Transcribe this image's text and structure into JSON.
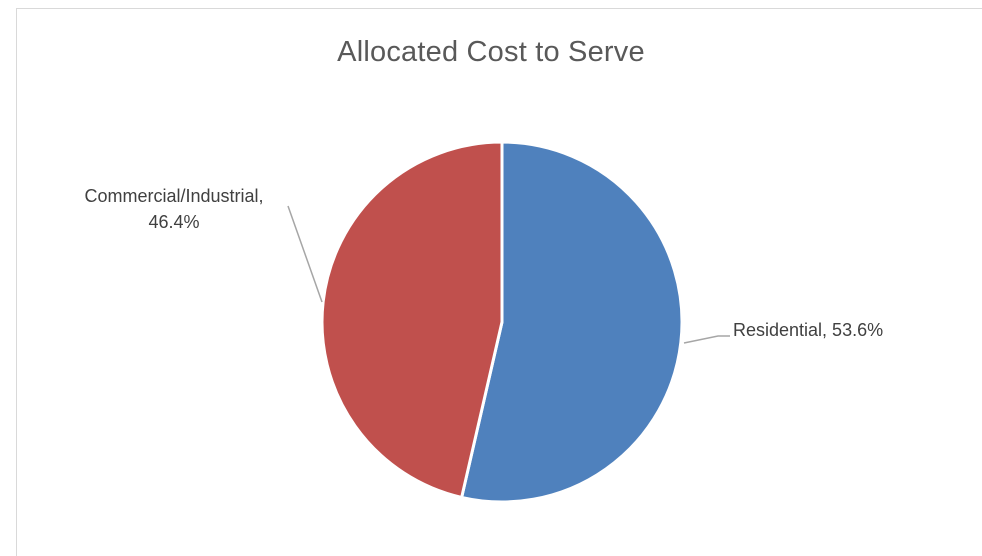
{
  "chart_data": {
    "type": "pie",
    "title": "Allocated Cost to Serve",
    "categories": [
      "Residential",
      "Commercial/Industrial"
    ],
    "values": [
      53.6,
      46.4
    ],
    "unit": "%",
    "colors": [
      "#4f81bd",
      "#c0504d"
    ],
    "data_labels": [
      {
        "lines": [
          "Residential, 53.6%"
        ]
      },
      {
        "lines": [
          "Commercial/Industrial,",
          "46.4%"
        ]
      }
    ],
    "legend": "none",
    "start_angle_deg": 0,
    "direction": "clockwise"
  }
}
